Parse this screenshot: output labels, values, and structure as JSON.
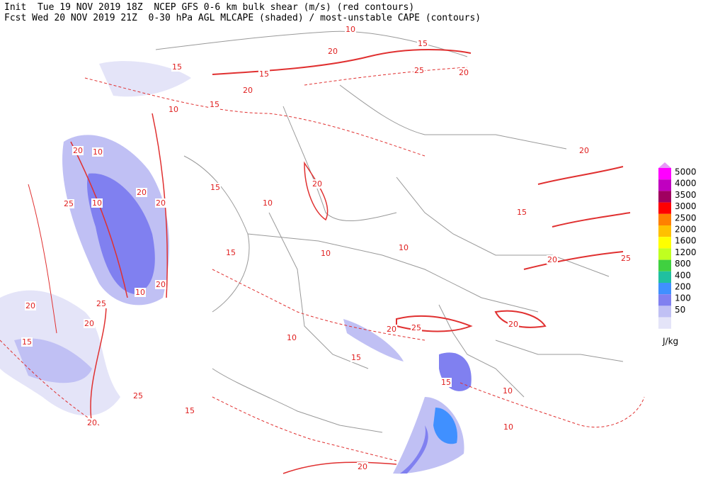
{
  "header": {
    "line1": "Init  Tue 19 NOV 2019 18Z  NCEP GFS 0-6 km bulk shear (m/s) (red contours)",
    "line2": "Fcst Wed 20 NOV 2019 21Z  0-30 hPa AGL MLCAPE (shaded) / most-unstable CAPE (contours)"
  },
  "legend": {
    "top_color": "#e898f8",
    "levels": [
      {
        "value": 5000,
        "color": "#ff00ff"
      },
      {
        "value": 4000,
        "color": "#c000c0"
      },
      {
        "value": 3500,
        "color": "#a00060"
      },
      {
        "value": 3000,
        "color": "#ff0000"
      },
      {
        "value": 2500,
        "color": "#ff8000"
      },
      {
        "value": 2000,
        "color": "#ffc000"
      },
      {
        "value": 1600,
        "color": "#ffff00"
      },
      {
        "value": 1200,
        "color": "#c0ff20"
      },
      {
        "value": 800,
        "color": "#40d040"
      },
      {
        "value": 400,
        "color": "#20c0a0"
      },
      {
        "value": 200,
        "color": "#4090ff"
      },
      {
        "value": 100,
        "color": "#8080f0"
      },
      {
        "value": 50,
        "color": "#c0c0f4"
      }
    ],
    "base_color": "#e4e4f8",
    "unit": "J/kg"
  },
  "contour_labels": [
    20,
    10,
    15,
    20,
    25,
    15,
    20,
    15,
    10,
    15,
    20,
    10,
    25,
    10,
    20,
    20,
    15,
    20,
    10,
    15,
    10,
    10,
    20,
    15,
    20,
    25,
    20,
    20,
    15,
    25,
    20,
    15,
    10,
    15,
    25,
    20,
    20,
    10,
    10,
    20,
    15,
    10,
    20,
    25
  ]
}
